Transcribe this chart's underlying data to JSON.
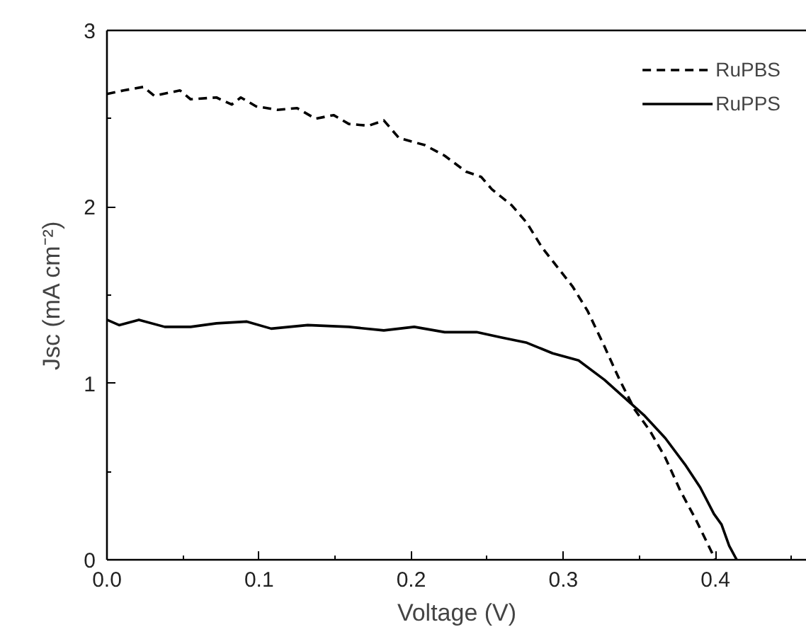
{
  "chart_data": {
    "type": "line",
    "xlabel": "Voltage (V)",
    "ylabel": "Jsc (mA cm⁻²)",
    "xlim": [
      0,
      0.46
    ],
    "ylim": [
      0,
      3
    ],
    "xticks": [
      {
        "value": 0,
        "label": "0.0"
      },
      0.1,
      0.2,
      0.3,
      0.4
    ],
    "yticks": [
      0,
      1,
      2,
      3
    ],
    "grid": false,
    "legend": "top right",
    "marker": "none",
    "series": [
      {
        "name": "RuPBS",
        "color": "#000000",
        "line_style": "dashed",
        "x": [
          0,
          0.011,
          0.024,
          0.031,
          0.048,
          0.055,
          0.072,
          0.082,
          0.088,
          0.098,
          0.112,
          0.125,
          0.137,
          0.149,
          0.159,
          0.172,
          0.182,
          0.192,
          0.209,
          0.222,
          0.236,
          0.246,
          0.253,
          0.266,
          0.276,
          0.286,
          0.296,
          0.306,
          0.316,
          0.327,
          0.337,
          0.347,
          0.357,
          0.367,
          0.377,
          0.387,
          0.4
        ],
        "values": [
          2.64,
          2.66,
          2.68,
          2.63,
          2.66,
          2.61,
          2.62,
          2.58,
          2.62,
          2.57,
          2.55,
          2.56,
          2.5,
          2.52,
          2.47,
          2.46,
          2.49,
          2.39,
          2.35,
          2.29,
          2.2,
          2.17,
          2.1,
          2.01,
          1.91,
          1.77,
          1.66,
          1.55,
          1.41,
          1.21,
          1.02,
          0.85,
          0.73,
          0.58,
          0.39,
          0.23,
          0
        ]
      },
      {
        "name": "RuPPS",
        "color": "#000000",
        "line_style": "solid",
        "x": [
          0,
          0.008,
          0.021,
          0.038,
          0.055,
          0.072,
          0.092,
          0.108,
          0.132,
          0.159,
          0.182,
          0.202,
          0.222,
          0.243,
          0.259,
          0.276,
          0.293,
          0.31,
          0.327,
          0.34,
          0.353,
          0.367,
          0.38,
          0.39,
          0.399,
          0.404,
          0.409,
          0.414
        ],
        "values": [
          1.36,
          1.33,
          1.36,
          1.32,
          1.32,
          1.34,
          1.35,
          1.31,
          1.33,
          1.32,
          1.3,
          1.32,
          1.29,
          1.29,
          1.26,
          1.23,
          1.17,
          1.13,
          1.02,
          0.92,
          0.82,
          0.69,
          0.54,
          0.41,
          0.26,
          0.2,
          0.08,
          0
        ]
      }
    ]
  }
}
